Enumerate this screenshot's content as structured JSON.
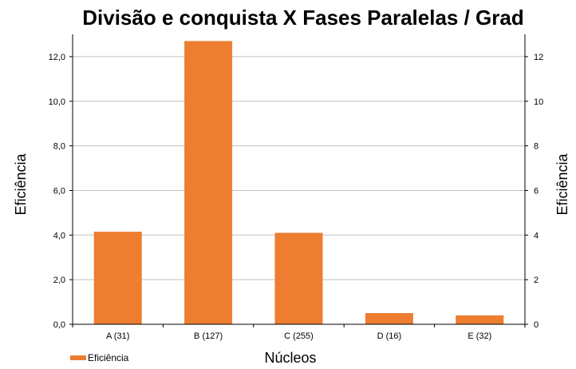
{
  "chart_data": {
    "type": "bar",
    "title": "Divisão e conquista X Fases Paralelas / Grad",
    "xlabel": "Núcleos",
    "ylabel_left": "Eficiência",
    "ylabel_right": "Eficiência",
    "categories": [
      "A (31)",
      "B (127)",
      "C (255)",
      "D (16)",
      "E (32)"
    ],
    "series": [
      {
        "name": "Eficiência",
        "values": [
          4.15,
          12.7,
          4.1,
          0.5,
          0.4
        ]
      }
    ],
    "ylim": [
      0,
      13
    ],
    "yticks_left": [
      "0,0",
      "2,0",
      "4,0",
      "6,0",
      "8,0",
      "10,0",
      "12,0"
    ],
    "yticks_right": [
      "0",
      "2",
      "4",
      "6",
      "8",
      "10",
      "12"
    ],
    "bar_color": "#ed7d31",
    "grid": true,
    "legend_position": "bottom-left"
  }
}
